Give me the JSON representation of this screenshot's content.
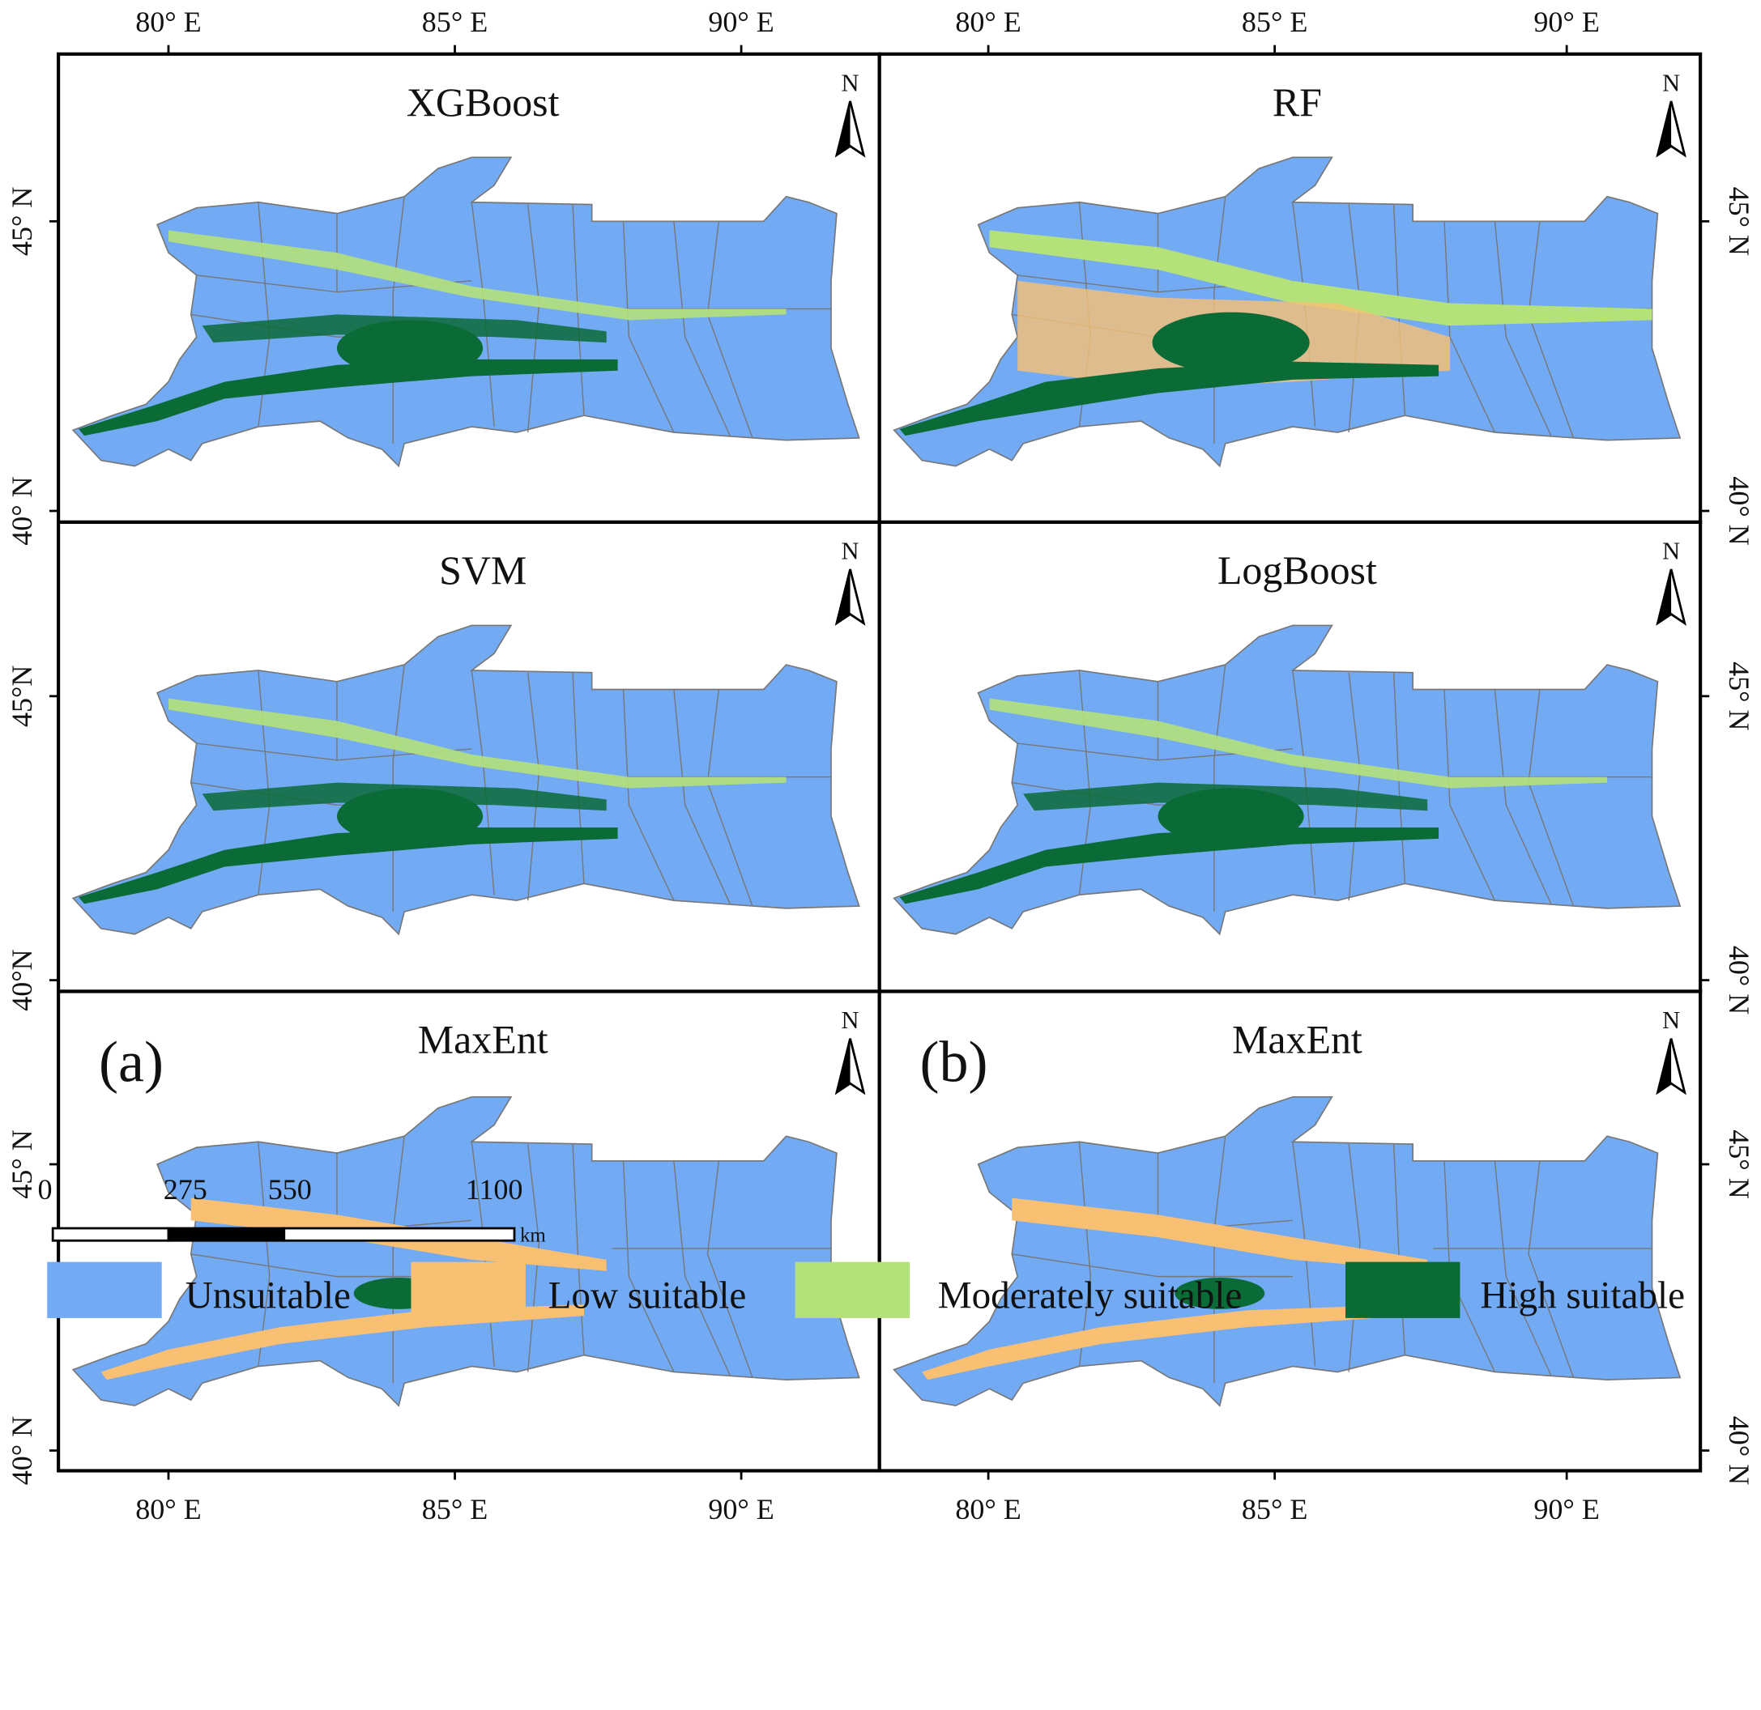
{
  "panels": [
    {
      "title": "XGBoost"
    },
    {
      "title": "RF"
    },
    {
      "title": "SVM"
    },
    {
      "title": "LogBoost"
    },
    {
      "title": "MaxEnt",
      "label": "(a)"
    },
    {
      "title": "MaxEnt",
      "label": "(b)"
    }
  ],
  "north_label": "N",
  "lon_labels": [
    "80° E",
    "85° E",
    "90° E"
  ],
  "lat_labels_left": [
    [
      "45° N",
      "40° N"
    ],
    [
      "45°N",
      "40°N"
    ],
    [
      "45° N",
      "40° N"
    ]
  ],
  "lat_labels_right": [
    [
      "45° N",
      "40° N"
    ],
    [
      "45° N",
      "40° N"
    ],
    [
      "45° N",
      "40° N"
    ]
  ],
  "scale_bar": {
    "ticks": [
      "0",
      "275",
      "550",
      "1100"
    ],
    "unit": "km"
  },
  "legend": [
    {
      "label": "Unsuitable",
      "color": "#72aaf4"
    },
    {
      "label": "Low suitable",
      "color": "#f9c074"
    },
    {
      "label": "Moderately suitable",
      "color": "#b5e17a"
    },
    {
      "label": "High suitable",
      "color": "#0a6b36"
    }
  ]
}
